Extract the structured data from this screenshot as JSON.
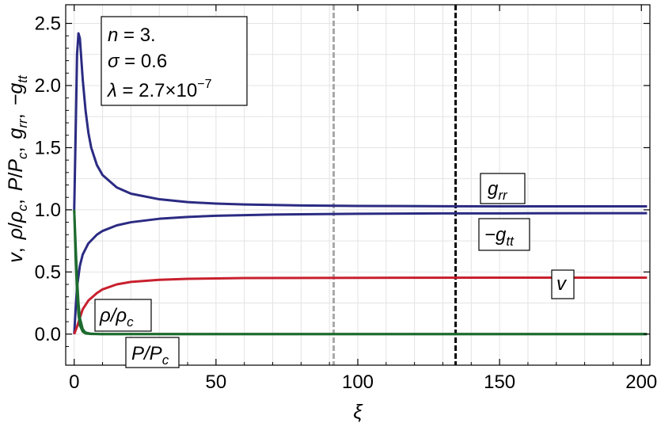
{
  "chart_data": {
    "type": "line",
    "xlabel": "ξ",
    "ylabel": {
      "v": "v",
      "rho": "ρ",
      "rho_sub": "ρ",
      "rho_sub_c": "c",
      "P": "P",
      "P_sub": "P",
      "P_sub_c": "c",
      "grr_main": "g",
      "grr_sub": "rr",
      "gtt_main": "−g",
      "gtt_sub": "tt",
      "sep": ","
    },
    "xlim": [
      -3,
      203
    ],
    "ylim": [
      -0.25,
      2.65
    ],
    "x_ticks": [
      0,
      50,
      100,
      150,
      200
    ],
    "y_ticks": [
      0.0,
      0.5,
      1.0,
      1.5,
      2.0,
      2.5
    ],
    "x_tick_labels": [
      "0",
      "50",
      "100",
      "150",
      "200"
    ],
    "y_tick_labels": [
      "0.0",
      "0.5",
      "1.0",
      "1.5",
      "2.0",
      "2.5"
    ],
    "grid": true,
    "vertical_lines": [
      {
        "x": 91.5,
        "style": "dashed",
        "color": "#a8a8a8"
      },
      {
        "x": 134.5,
        "style": "dashed",
        "color": "#000000"
      }
    ],
    "parameters": {
      "n_sym": "n",
      "n_val": " = 3.",
      "sigma_sym": "σ",
      "sigma_val": " = 0.6",
      "lambda_sym": "λ",
      "lambda_val": " = 2.7×10",
      "lambda_exp": "−7"
    },
    "series": [
      {
        "key": "grr",
        "color": "#2b2b83",
        "points": [
          [
            0,
            1.0
          ],
          [
            0.5,
            1.6
          ],
          [
            1,
            2.25
          ],
          [
            1.5,
            2.42
          ],
          [
            2,
            2.38
          ],
          [
            3,
            2.05
          ],
          [
            4,
            1.8
          ],
          [
            5,
            1.62
          ],
          [
            6,
            1.5
          ],
          [
            8,
            1.36
          ],
          [
            10,
            1.28
          ],
          [
            15,
            1.18
          ],
          [
            20,
            1.13
          ],
          [
            30,
            1.085
          ],
          [
            40,
            1.062
          ],
          [
            50,
            1.05
          ],
          [
            60,
            1.043
          ],
          [
            80,
            1.035
          ],
          [
            100,
            1.031
          ],
          [
            130,
            1.029
          ],
          [
            160,
            1.028
          ],
          [
            202,
            1.028
          ]
        ]
      },
      {
        "key": "gtt",
        "color": "#2b2b83",
        "points": [
          [
            0,
            0.0
          ],
          [
            0.5,
            0.2
          ],
          [
            1,
            0.38
          ],
          [
            2,
            0.55
          ],
          [
            3,
            0.64
          ],
          [
            5,
            0.73
          ],
          [
            8,
            0.8
          ],
          [
            10,
            0.83
          ],
          [
            15,
            0.875
          ],
          [
            20,
            0.9
          ],
          [
            30,
            0.928
          ],
          [
            40,
            0.943
          ],
          [
            50,
            0.952
          ],
          [
            70,
            0.962
          ],
          [
            100,
            0.968
          ],
          [
            130,
            0.971
          ],
          [
            160,
            0.972
          ],
          [
            202,
            0.973
          ]
        ]
      },
      {
        "key": "v",
        "color": "#c8202e",
        "points": [
          [
            0,
            0.0
          ],
          [
            1,
            0.06
          ],
          [
            2,
            0.13
          ],
          [
            3,
            0.2
          ],
          [
            5,
            0.27
          ],
          [
            8,
            0.33
          ],
          [
            10,
            0.36
          ],
          [
            15,
            0.4
          ],
          [
            20,
            0.42
          ],
          [
            30,
            0.437
          ],
          [
            40,
            0.445
          ],
          [
            60,
            0.451
          ],
          [
            100,
            0.453
          ],
          [
            150,
            0.454
          ],
          [
            202,
            0.454
          ]
        ]
      },
      {
        "key": "rho",
        "color": "#1d6b2f",
        "points": [
          [
            0,
            1.0
          ],
          [
            0.5,
            0.72
          ],
          [
            1,
            0.45
          ],
          [
            1.5,
            0.25
          ],
          [
            2,
            0.13
          ],
          [
            3,
            0.04
          ],
          [
            4,
            0.012
          ],
          [
            6,
            0.003
          ],
          [
            10,
            0.0
          ],
          [
            202,
            0.0
          ]
        ]
      },
      {
        "key": "P",
        "color": "#1d6b2f",
        "points": [
          [
            0,
            1.0
          ],
          [
            0.5,
            0.62
          ],
          [
            1,
            0.33
          ],
          [
            1.5,
            0.16
          ],
          [
            2,
            0.07
          ],
          [
            3,
            0.02
          ],
          [
            4,
            0.005
          ],
          [
            6,
            0.001
          ],
          [
            10,
            0.0
          ],
          [
            202,
            0.0
          ]
        ]
      }
    ],
    "labels": {
      "grr": {
        "main": "g",
        "sub": "rr"
      },
      "gtt": {
        "main": "−g",
        "sub": "tt"
      },
      "v": {
        "main": "v"
      },
      "rho": {
        "main": "ρ/ρ",
        "sub": "c"
      },
      "P": {
        "main": "P/P",
        "sub": "c"
      }
    }
  }
}
